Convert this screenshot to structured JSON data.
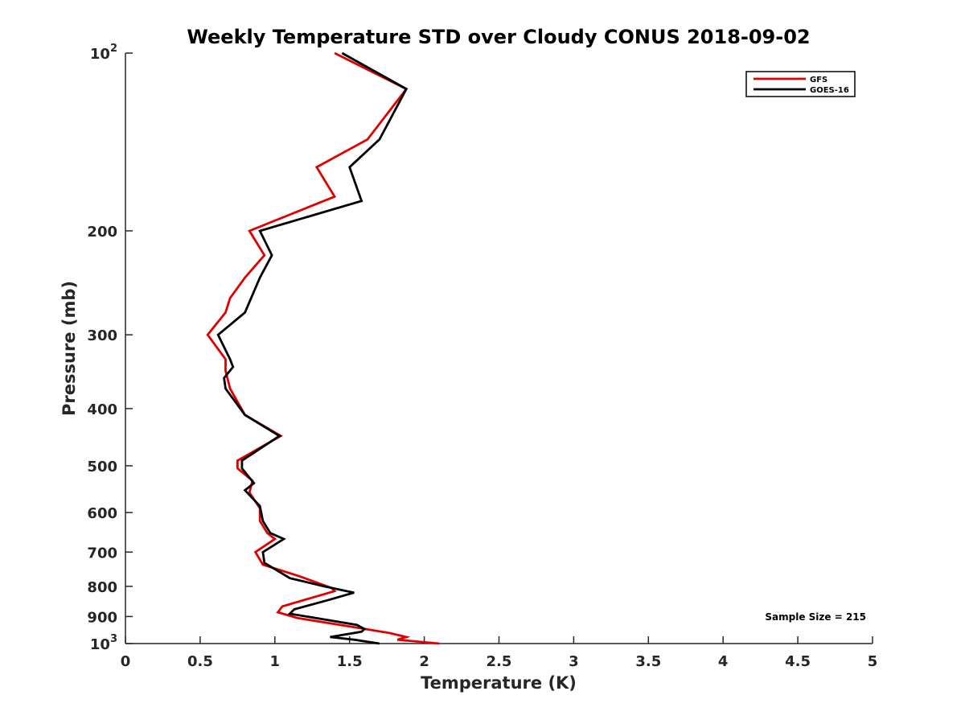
{
  "chart_data": {
    "type": "line",
    "title": "Weekly Temperature STD over Cloudy CONUS 2018-09-02",
    "xlabel": "Temperature (K)",
    "ylabel": "Pressure (mb)",
    "xlim": [
      0,
      5
    ],
    "ylim": [
      100,
      1000
    ],
    "y_scale": "log",
    "y_reversed": true,
    "xticks": [
      0,
      0.5,
      1,
      1.5,
      2,
      2.5,
      3,
      3.5,
      4,
      4.5,
      5
    ],
    "xtick_labels": [
      "0",
      "0.5",
      "1",
      "1.5",
      "2",
      "2.5",
      "3",
      "3.5",
      "4",
      "4.5",
      "5"
    ],
    "yticks": [
      {
        "value": 100,
        "base": "10",
        "exp": "2"
      },
      {
        "value": 200,
        "label": "200"
      },
      {
        "value": 300,
        "label": "300"
      },
      {
        "value": 400,
        "label": "400"
      },
      {
        "value": 500,
        "label": "500"
      },
      {
        "value": 600,
        "label": "600"
      },
      {
        "value": 700,
        "label": "700"
      },
      {
        "value": 800,
        "label": "800"
      },
      {
        "value": 900,
        "label": "900"
      },
      {
        "value": 1000,
        "base": "10",
        "exp": "3"
      }
    ],
    "grid": false,
    "legend_position": "top-right",
    "annotation": "Sample Size = 215",
    "series": [
      {
        "name": "GFS",
        "color": "#e00000",
        "points": [
          [
            1.4,
            100
          ],
          [
            1.88,
            115
          ],
          [
            1.62,
            140
          ],
          [
            1.28,
            156
          ],
          [
            1.4,
            175
          ],
          [
            0.83,
            200
          ],
          [
            0.93,
            220
          ],
          [
            0.8,
            240
          ],
          [
            0.7,
            260
          ],
          [
            0.67,
            275
          ],
          [
            0.55,
            300
          ],
          [
            0.67,
            330
          ],
          [
            0.67,
            345
          ],
          [
            0.7,
            370
          ],
          [
            0.8,
            410
          ],
          [
            1.04,
            445
          ],
          [
            0.75,
            490
          ],
          [
            0.75,
            505
          ],
          [
            0.85,
            530
          ],
          [
            0.83,
            555
          ],
          [
            0.9,
            590
          ],
          [
            0.9,
            620
          ],
          [
            0.95,
            650
          ],
          [
            1.0,
            665
          ],
          [
            0.87,
            700
          ],
          [
            0.92,
            735
          ],
          [
            1.17,
            770
          ],
          [
            1.38,
            805
          ],
          [
            1.4,
            815
          ],
          [
            1.05,
            865
          ],
          [
            1.02,
            885
          ],
          [
            1.15,
            905
          ],
          [
            1.55,
            940
          ],
          [
            1.77,
            960
          ],
          [
            1.88,
            975
          ],
          [
            1.82,
            985
          ],
          [
            2.1,
            1000
          ]
        ]
      },
      {
        "name": "GOES-16",
        "color": "#000000",
        "points": [
          [
            1.45,
            100
          ],
          [
            1.88,
            115
          ],
          [
            1.7,
            140
          ],
          [
            1.5,
            156
          ],
          [
            1.58,
            178
          ],
          [
            0.9,
            200
          ],
          [
            0.98,
            220
          ],
          [
            0.9,
            240
          ],
          [
            0.8,
            275
          ],
          [
            0.62,
            300
          ],
          [
            0.7,
            330
          ],
          [
            0.72,
            340
          ],
          [
            0.66,
            355
          ],
          [
            0.67,
            370
          ],
          [
            0.8,
            410
          ],
          [
            1.03,
            445
          ],
          [
            0.78,
            490
          ],
          [
            0.78,
            505
          ],
          [
            0.86,
            535
          ],
          [
            0.8,
            550
          ],
          [
            0.9,
            585
          ],
          [
            0.92,
            620
          ],
          [
            0.97,
            650
          ],
          [
            1.06,
            665
          ],
          [
            0.92,
            700
          ],
          [
            0.93,
            730
          ],
          [
            1.1,
            775
          ],
          [
            1.33,
            800
          ],
          [
            1.53,
            820
          ],
          [
            1.35,
            845
          ],
          [
            1.13,
            875
          ],
          [
            1.1,
            890
          ],
          [
            1.55,
            930
          ],
          [
            1.6,
            945
          ],
          [
            1.58,
            955
          ],
          [
            1.37,
            975
          ],
          [
            1.53,
            985
          ],
          [
            1.7,
            1000
          ]
        ]
      }
    ]
  }
}
